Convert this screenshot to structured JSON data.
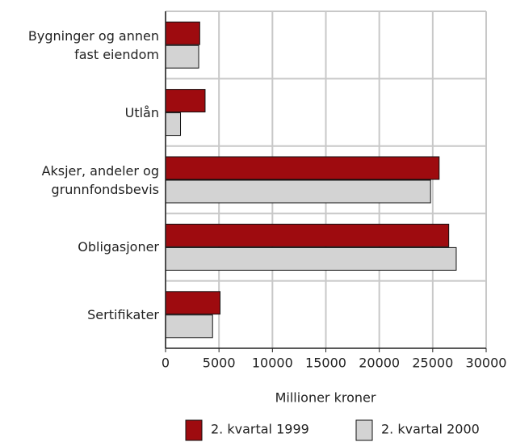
{
  "chart_data": {
    "type": "bar",
    "orientation": "horizontal",
    "categories": [
      "Bygninger og annen\nfast eiendom",
      "Utlån",
      "Aksjer, andeler og\ngrunnfondsbevis",
      "Obligasjoner",
      "Sertifikater"
    ],
    "series": [
      {
        "name": "2. kvartal 1999",
        "color": "#9e0b0f",
        "values": [
          3200,
          3700,
          25600,
          26500,
          5100
        ]
      },
      {
        "name": "2. kvartal 2000",
        "color": "#d3d3d3",
        "values": [
          3100,
          1400,
          24800,
          27200,
          4400
        ]
      }
    ],
    "xlabel": "Millioner kroner",
    "xlim": [
      0,
      30000
    ],
    "xticks": [
      0,
      5000,
      10000,
      15000,
      20000,
      25000,
      30000
    ],
    "grid": true,
    "legend": "bottom"
  }
}
